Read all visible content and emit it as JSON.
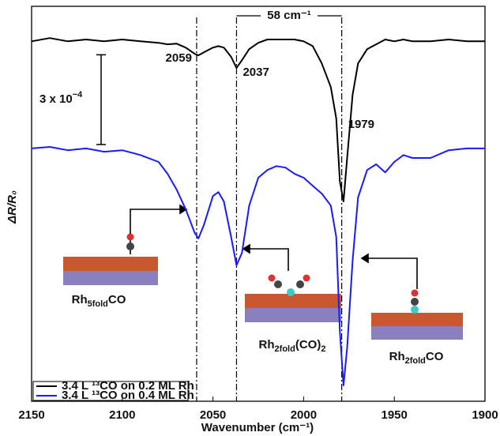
{
  "chart_data": {
    "type": "line",
    "x_label": "Wavenumber (cm⁻¹)",
    "y_label": "ΔR/R₀",
    "xlim": [
      2150,
      1900
    ],
    "xticks": [
      2150,
      2100,
      2050,
      2000,
      1950,
      1900
    ],
    "ylim": [
      0,
      13.2
    ],
    "x": [
      2150,
      2140,
      2130,
      2120,
      2110,
      2100,
      2090,
      2080,
      2075,
      2070,
      2065,
      2060,
      2058,
      2055,
      2050,
      2047,
      2044,
      2040,
      2037,
      2034,
      2030,
      2025,
      2020,
      2015,
      2010,
      2005,
      2000,
      1995,
      1990,
      1985,
      1982,
      1980,
      1978,
      1976,
      1973,
      1970,
      1965,
      1960,
      1955,
      1950,
      1945,
      1940,
      1930,
      1920,
      1910,
      1900
    ],
    "series": [
      {
        "name": "3.4 L ¹³CO on 0.2 ML Rh",
        "color": "#000000",
        "values": [
          12.03,
          12.14,
          12.03,
          12.09,
          12.03,
          12.09,
          12.03,
          11.98,
          11.93,
          11.95,
          11.82,
          11.61,
          11.56,
          11.66,
          11.82,
          11.87,
          11.82,
          11.51,
          11.14,
          11.4,
          11.77,
          11.98,
          12.09,
          12.09,
          12.09,
          12.09,
          12.03,
          11.87,
          11.29,
          10.5,
          9.45,
          7.34,
          6.68,
          8.13,
          10.24,
          11.29,
          11.77,
          11.93,
          12.09,
          12.03,
          12.09,
          12.03,
          12.03,
          12.09,
          12.03,
          12.03
        ]
      },
      {
        "name": "3.4 L ¹³CO on 0.4 ML Rh",
        "color": "#1a1aff",
        "values": [
          8.45,
          8.5,
          8.39,
          8.45,
          8.34,
          8.39,
          8.23,
          8.0,
          7.6,
          7.07,
          6.41,
          5.62,
          5.44,
          5.89,
          6.86,
          6.99,
          6.68,
          5.49,
          4.54,
          4.96,
          6.54,
          7.47,
          7.73,
          7.86,
          7.81,
          7.6,
          7.47,
          7.2,
          6.94,
          6.54,
          5.49,
          2.32,
          0.53,
          1.79,
          4.7,
          6.81,
          7.73,
          7.92,
          7.65,
          8.0,
          8.23,
          8.13,
          8.13,
          8.39,
          8.45,
          8.45
        ]
      }
    ],
    "peak_lines": [
      2059,
      2037,
      1979
    ],
    "span_label": "58 cm⁻¹",
    "scale_bar": {
      "value": 3,
      "label": "3 x 10",
      "exponent": "−4"
    },
    "species": [
      {
        "parts": [
          "Rh",
          "5fold",
          "CO"
        ]
      },
      {
        "parts": [
          "Rh",
          "2fold",
          "(CO)",
          "2"
        ]
      },
      {
        "parts": [
          "Rh",
          "2fold",
          "CO"
        ]
      }
    ],
    "legend": "lower left"
  }
}
